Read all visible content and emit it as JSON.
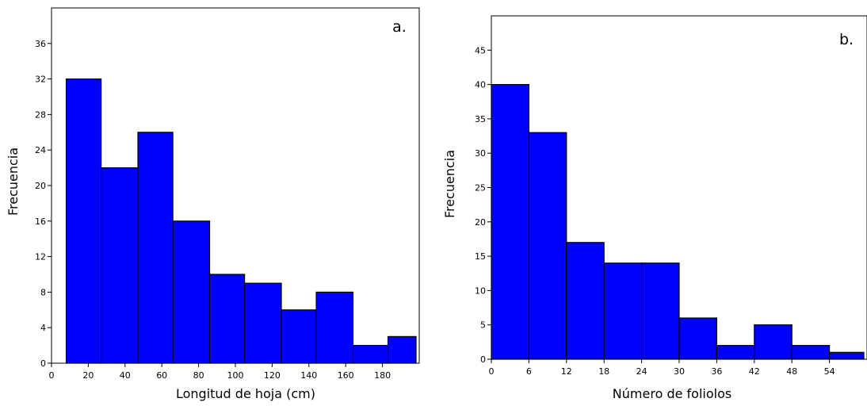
{
  "chart_data": [
    {
      "type": "bar",
      "panel_label": "a.",
      "xlabel": "Longitud de hoja (cm)",
      "ylabel": "Frecuencia",
      "xlim": [
        0,
        200
      ],
      "ylim": [
        0,
        40
      ],
      "xticks": [
        0,
        20,
        40,
        60,
        80,
        100,
        120,
        140,
        160,
        180
      ],
      "yticks": [
        0,
        4,
        8,
        12,
        16,
        20,
        24,
        28,
        32,
        36
      ],
      "bins": [
        {
          "x0": 8,
          "x1": 27,
          "value": 32
        },
        {
          "x0": 27,
          "x1": 47,
          "value": 22
        },
        {
          "x0": 47,
          "x1": 66,
          "value": 26
        },
        {
          "x0": 66,
          "x1": 86,
          "value": 16
        },
        {
          "x0": 86,
          "x1": 105,
          "value": 10
        },
        {
          "x0": 105,
          "x1": 125,
          "value": 9
        },
        {
          "x0": 125,
          "x1": 144,
          "value": 6
        },
        {
          "x0": 144,
          "x1": 164,
          "value": 8
        },
        {
          "x0": 164,
          "x1": 183,
          "value": 2
        },
        {
          "x0": 183,
          "x1": 203,
          "value": 3
        }
      ],
      "bar_color": "#0000ff",
      "grid": false
    },
    {
      "type": "bar",
      "panel_label": "b.",
      "xlabel": "Número de foliolos",
      "ylabel": "Frecuencia",
      "xlim": [
        0,
        60
      ],
      "ylim": [
        0,
        50
      ],
      "xticks": [
        0,
        6,
        12,
        18,
        24,
        30,
        36,
        42,
        48,
        54
      ],
      "yticks": [
        0,
        5,
        10,
        15,
        20,
        25,
        30,
        35,
        40,
        45
      ],
      "bins": [
        {
          "x0": 0,
          "x1": 6,
          "value": 40
        },
        {
          "x0": 6,
          "x1": 12,
          "value": 33
        },
        {
          "x0": 12,
          "x1": 18,
          "value": 17
        },
        {
          "x0": 18,
          "x1": 24,
          "value": 14
        },
        {
          "x0": 24,
          "x1": 30,
          "value": 14
        },
        {
          "x0": 30,
          "x1": 36,
          "value": 6
        },
        {
          "x0": 36,
          "x1": 42,
          "value": 2
        },
        {
          "x0": 42,
          "x1": 48,
          "value": 5
        },
        {
          "x0": 48,
          "x1": 54,
          "value": 2
        },
        {
          "x0": 54,
          "x1": 60,
          "value": 1
        }
      ],
      "bar_color": "#0000ff",
      "grid": false
    }
  ]
}
